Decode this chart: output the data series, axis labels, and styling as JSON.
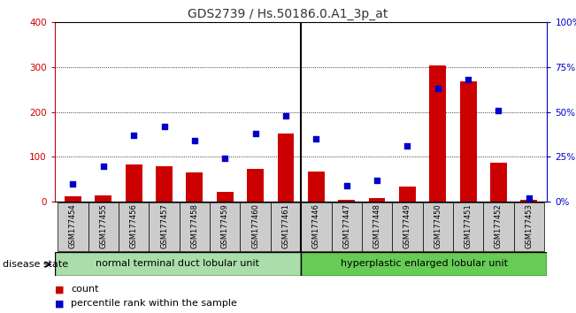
{
  "title": "GDS2739 / Hs.50186.0.A1_3p_at",
  "samples": [
    "GSM177454",
    "GSM177455",
    "GSM177456",
    "GSM177457",
    "GSM177458",
    "GSM177459",
    "GSM177460",
    "GSM177461",
    "GSM177446",
    "GSM177447",
    "GSM177448",
    "GSM177449",
    "GSM177450",
    "GSM177451",
    "GSM177452",
    "GSM177453"
  ],
  "counts": [
    12,
    14,
    83,
    80,
    65,
    22,
    73,
    152,
    68,
    5,
    9,
    35,
    303,
    268,
    88,
    5
  ],
  "percentiles": [
    10,
    20,
    37,
    42,
    34,
    24,
    38,
    48,
    35,
    9,
    12,
    31,
    63,
    68,
    51,
    2
  ],
  "group1_label": "normal terminal duct lobular unit",
  "group2_label": "hyperplastic enlarged lobular unit",
  "group1_count": 8,
  "group2_count": 8,
  "ylim_left": [
    0,
    400
  ],
  "ylim_right": [
    0,
    100
  ],
  "yticks_left": [
    0,
    100,
    200,
    300,
    400
  ],
  "yticks_right": [
    0,
    25,
    50,
    75,
    100
  ],
  "yticklabels_right": [
    "0%",
    "25%",
    "50%",
    "75%",
    "100%"
  ],
  "bar_color": "#cc0000",
  "dot_color": "#0000cc",
  "bg_color": "#cccccc",
  "group1_bg": "#aaddaa",
  "group2_bg": "#66cc55",
  "title_color": "#333333",
  "left_tick_color": "#cc0000",
  "right_tick_color": "#0000cc",
  "disease_state_label": "disease state"
}
